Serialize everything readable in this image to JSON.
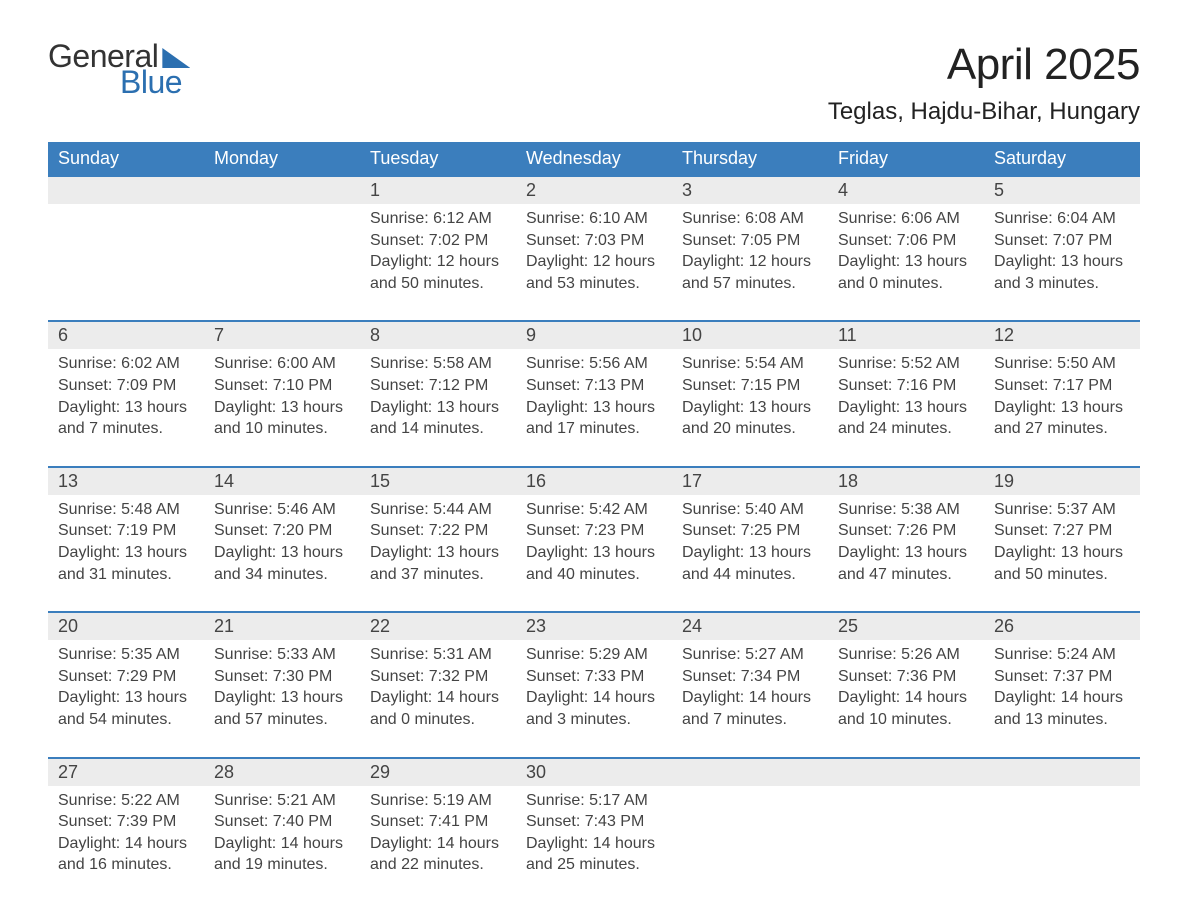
{
  "brand": {
    "general": "General",
    "blue": "Blue",
    "accent": "#2b6fb0"
  },
  "title": "April 2025",
  "location": "Teglas, Hajdu-Bihar, Hungary",
  "colors": {
    "header_bg": "#3b7ebd",
    "header_text": "#ffffff",
    "daynum_bg": "#ececec",
    "rule": "#3b7ebd",
    "text": "#444444",
    "page_bg": "#ffffff"
  },
  "day_names": [
    "Sunday",
    "Monday",
    "Tuesday",
    "Wednesday",
    "Thursday",
    "Friday",
    "Saturday"
  ],
  "weeks": [
    [
      {
        "n": "",
        "sr": "",
        "ss": "",
        "dl": ""
      },
      {
        "n": "",
        "sr": "",
        "ss": "",
        "dl": ""
      },
      {
        "n": "1",
        "sr": "Sunrise: 6:12 AM",
        "ss": "Sunset: 7:02 PM",
        "dl": "Daylight: 12 hours and 50 minutes."
      },
      {
        "n": "2",
        "sr": "Sunrise: 6:10 AM",
        "ss": "Sunset: 7:03 PM",
        "dl": "Daylight: 12 hours and 53 minutes."
      },
      {
        "n": "3",
        "sr": "Sunrise: 6:08 AM",
        "ss": "Sunset: 7:05 PM",
        "dl": "Daylight: 12 hours and 57 minutes."
      },
      {
        "n": "4",
        "sr": "Sunrise: 6:06 AM",
        "ss": "Sunset: 7:06 PM",
        "dl": "Daylight: 13 hours and 0 minutes."
      },
      {
        "n": "5",
        "sr": "Sunrise: 6:04 AM",
        "ss": "Sunset: 7:07 PM",
        "dl": "Daylight: 13 hours and 3 minutes."
      }
    ],
    [
      {
        "n": "6",
        "sr": "Sunrise: 6:02 AM",
        "ss": "Sunset: 7:09 PM",
        "dl": "Daylight: 13 hours and 7 minutes."
      },
      {
        "n": "7",
        "sr": "Sunrise: 6:00 AM",
        "ss": "Sunset: 7:10 PM",
        "dl": "Daylight: 13 hours and 10 minutes."
      },
      {
        "n": "8",
        "sr": "Sunrise: 5:58 AM",
        "ss": "Sunset: 7:12 PM",
        "dl": "Daylight: 13 hours and 14 minutes."
      },
      {
        "n": "9",
        "sr": "Sunrise: 5:56 AM",
        "ss": "Sunset: 7:13 PM",
        "dl": "Daylight: 13 hours and 17 minutes."
      },
      {
        "n": "10",
        "sr": "Sunrise: 5:54 AM",
        "ss": "Sunset: 7:15 PM",
        "dl": "Daylight: 13 hours and 20 minutes."
      },
      {
        "n": "11",
        "sr": "Sunrise: 5:52 AM",
        "ss": "Sunset: 7:16 PM",
        "dl": "Daylight: 13 hours and 24 minutes."
      },
      {
        "n": "12",
        "sr": "Sunrise: 5:50 AM",
        "ss": "Sunset: 7:17 PM",
        "dl": "Daylight: 13 hours and 27 minutes."
      }
    ],
    [
      {
        "n": "13",
        "sr": "Sunrise: 5:48 AM",
        "ss": "Sunset: 7:19 PM",
        "dl": "Daylight: 13 hours and 31 minutes."
      },
      {
        "n": "14",
        "sr": "Sunrise: 5:46 AM",
        "ss": "Sunset: 7:20 PM",
        "dl": "Daylight: 13 hours and 34 minutes."
      },
      {
        "n": "15",
        "sr": "Sunrise: 5:44 AM",
        "ss": "Sunset: 7:22 PM",
        "dl": "Daylight: 13 hours and 37 minutes."
      },
      {
        "n": "16",
        "sr": "Sunrise: 5:42 AM",
        "ss": "Sunset: 7:23 PM",
        "dl": "Daylight: 13 hours and 40 minutes."
      },
      {
        "n": "17",
        "sr": "Sunrise: 5:40 AM",
        "ss": "Sunset: 7:25 PM",
        "dl": "Daylight: 13 hours and 44 minutes."
      },
      {
        "n": "18",
        "sr": "Sunrise: 5:38 AM",
        "ss": "Sunset: 7:26 PM",
        "dl": "Daylight: 13 hours and 47 minutes."
      },
      {
        "n": "19",
        "sr": "Sunrise: 5:37 AM",
        "ss": "Sunset: 7:27 PM",
        "dl": "Daylight: 13 hours and 50 minutes."
      }
    ],
    [
      {
        "n": "20",
        "sr": "Sunrise: 5:35 AM",
        "ss": "Sunset: 7:29 PM",
        "dl": "Daylight: 13 hours and 54 minutes."
      },
      {
        "n": "21",
        "sr": "Sunrise: 5:33 AM",
        "ss": "Sunset: 7:30 PM",
        "dl": "Daylight: 13 hours and 57 minutes."
      },
      {
        "n": "22",
        "sr": "Sunrise: 5:31 AM",
        "ss": "Sunset: 7:32 PM",
        "dl": "Daylight: 14 hours and 0 minutes."
      },
      {
        "n": "23",
        "sr": "Sunrise: 5:29 AM",
        "ss": "Sunset: 7:33 PM",
        "dl": "Daylight: 14 hours and 3 minutes."
      },
      {
        "n": "24",
        "sr": "Sunrise: 5:27 AM",
        "ss": "Sunset: 7:34 PM",
        "dl": "Daylight: 14 hours and 7 minutes."
      },
      {
        "n": "25",
        "sr": "Sunrise: 5:26 AM",
        "ss": "Sunset: 7:36 PM",
        "dl": "Daylight: 14 hours and 10 minutes."
      },
      {
        "n": "26",
        "sr": "Sunrise: 5:24 AM",
        "ss": "Sunset: 7:37 PM",
        "dl": "Daylight: 14 hours and 13 minutes."
      }
    ],
    [
      {
        "n": "27",
        "sr": "Sunrise: 5:22 AM",
        "ss": "Sunset: 7:39 PM",
        "dl": "Daylight: 14 hours and 16 minutes."
      },
      {
        "n": "28",
        "sr": "Sunrise: 5:21 AM",
        "ss": "Sunset: 7:40 PM",
        "dl": "Daylight: 14 hours and 19 minutes."
      },
      {
        "n": "29",
        "sr": "Sunrise: 5:19 AM",
        "ss": "Sunset: 7:41 PM",
        "dl": "Daylight: 14 hours and 22 minutes."
      },
      {
        "n": "30",
        "sr": "Sunrise: 5:17 AM",
        "ss": "Sunset: 7:43 PM",
        "dl": "Daylight: 14 hours and 25 minutes."
      },
      {
        "n": "",
        "sr": "",
        "ss": "",
        "dl": ""
      },
      {
        "n": "",
        "sr": "",
        "ss": "",
        "dl": ""
      },
      {
        "n": "",
        "sr": "",
        "ss": "",
        "dl": ""
      }
    ]
  ]
}
